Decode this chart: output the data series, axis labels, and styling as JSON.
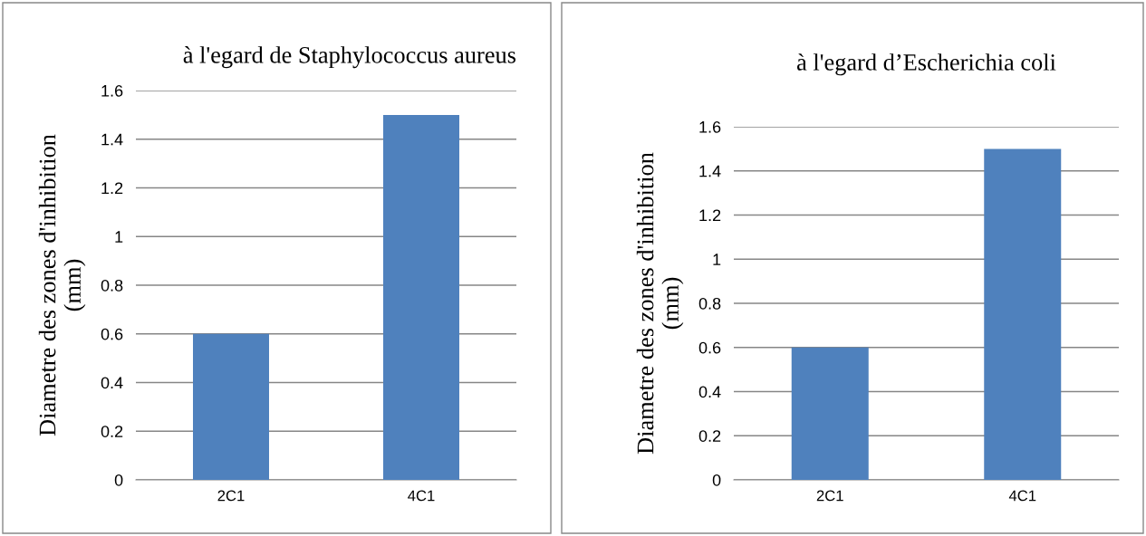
{
  "chart_data": [
    {
      "type": "bar",
      "title": "à l'egard de Staphylococcus aureus",
      "ylabel": "Diametre des zones d'inhibition\n(mm)",
      "categories": [
        "2C1",
        "4C1"
      ],
      "values": [
        0.6,
        1.5
      ],
      "color": "#4f81bd",
      "ylim": [
        0,
        1.6
      ],
      "yticks": [
        0,
        0.2,
        0.4,
        0.6,
        0.8,
        1,
        1.2,
        1.4,
        1.6
      ],
      "grid": "y",
      "legend": false
    },
    {
      "type": "bar",
      "title": "à l'egard d’Escherichia coli",
      "ylabel": "Diametre des zones d'inhibition\n(mm)",
      "categories": [
        "2C1",
        "4C1"
      ],
      "values": [
        0.6,
        1.5
      ],
      "color": "#4f81bd",
      "ylim": [
        0,
        1.6
      ],
      "yticks": [
        0,
        0.2,
        0.4,
        0.6,
        0.8,
        1,
        1.2,
        1.4,
        1.6
      ],
      "grid": "y",
      "legend": false
    }
  ]
}
